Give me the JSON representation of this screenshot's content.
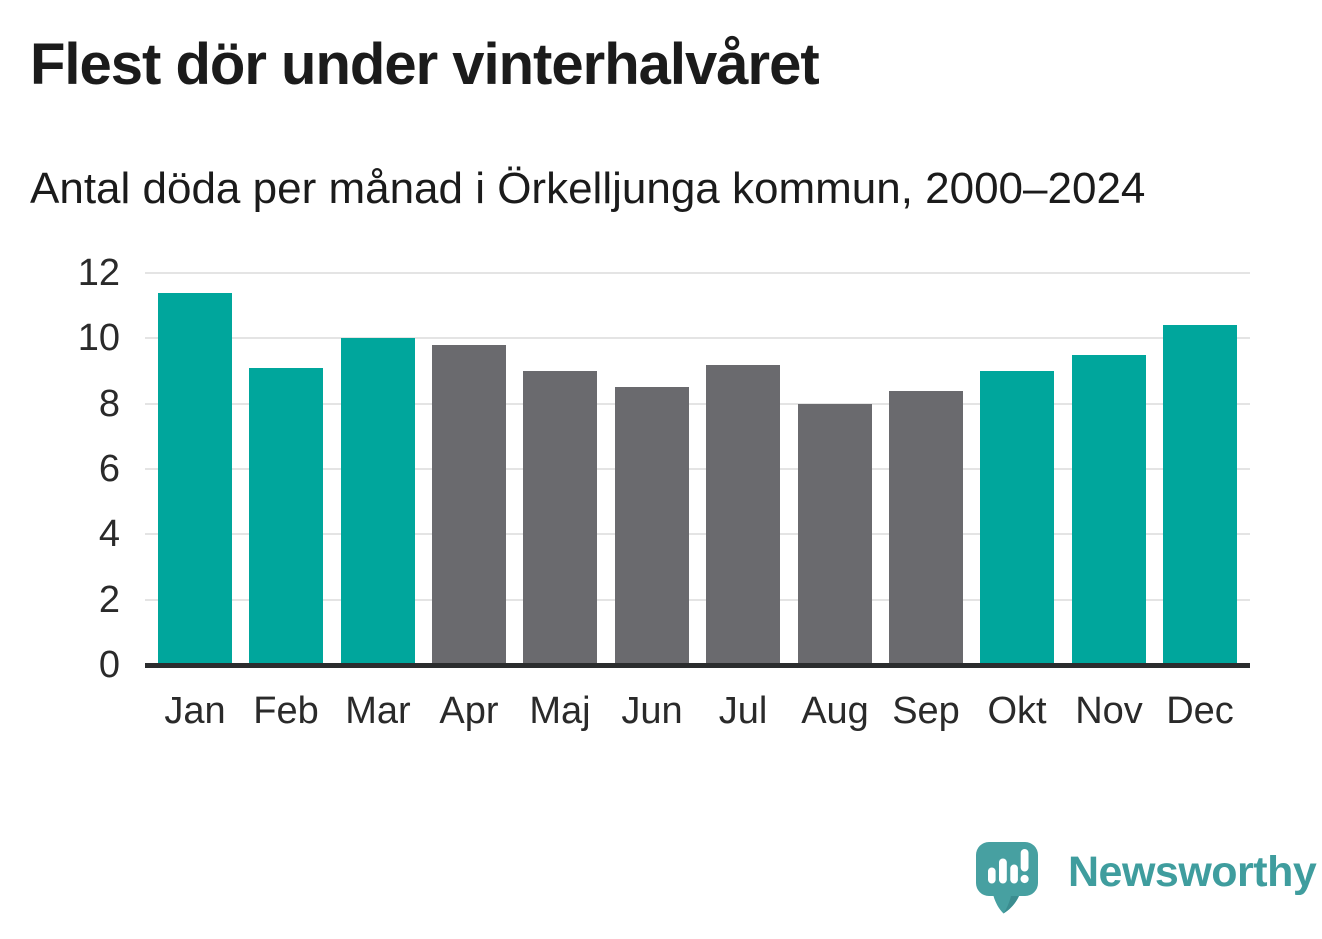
{
  "header": {
    "title": "Flest dör under vinterhalvåret",
    "subtitle": "Antal döda per månad i Örkelljunga kommun, 2000–2024"
  },
  "chart_data": {
    "type": "bar",
    "title": "Flest dör under vinterhalvåret",
    "subtitle": "Antal döda per månad i Örkelljunga kommun, 2000–2024",
    "categories": [
      "Jan",
      "Feb",
      "Mar",
      "Apr",
      "Maj",
      "Jun",
      "Jul",
      "Aug",
      "Sep",
      "Okt",
      "Nov",
      "Dec"
    ],
    "values": [
      11.4,
      9.1,
      10.0,
      9.8,
      9.0,
      8.5,
      9.2,
      8.0,
      8.4,
      9.0,
      9.5,
      10.4
    ],
    "bar_groups": [
      "winter",
      "winter",
      "winter",
      "summer",
      "summer",
      "summer",
      "summer",
      "summer",
      "summer",
      "winter",
      "winter",
      "winter"
    ],
    "palette": {
      "winter": "#00a69c",
      "summer": "#6a6a6e"
    },
    "xlabel": "",
    "ylabel": "",
    "ylim": [
      0,
      12
    ],
    "yticks": [
      0,
      2,
      4,
      6,
      8,
      10,
      12
    ],
    "grid": true,
    "legend": false
  },
  "style_colors": {
    "gridline": "#e4e4e4",
    "axis": "#2b2d2e",
    "tick_text": "#2a2a2a",
    "title_text": "#1b1b1b",
    "brand_teal": "#3f9d9e",
    "bar_teal": "#00a69c",
    "bar_gray": "#6a6a6e"
  },
  "footer": {
    "brand": "Newsworthy",
    "logo_icon": "newsworthy-speech-bubble-barchart-icon"
  }
}
